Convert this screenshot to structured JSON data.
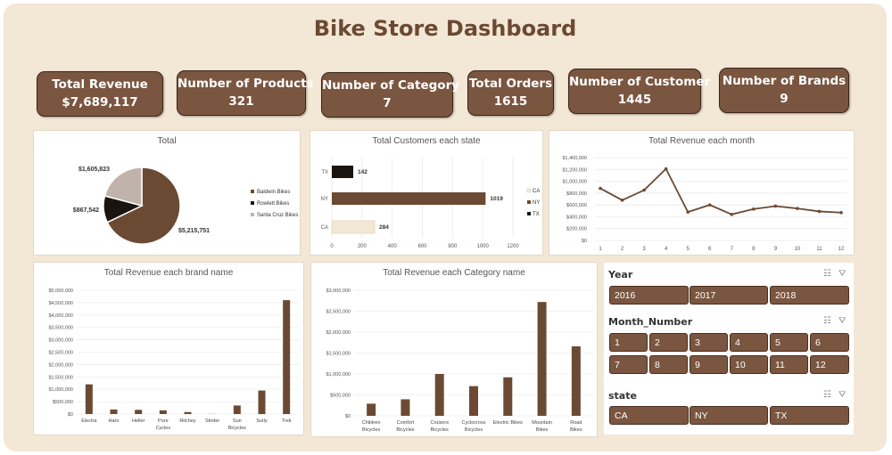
{
  "title": "Bike Store Dashboard",
  "kpis": [
    {
      "label": "Total Revenue",
      "value": "$7,689,117"
    },
    {
      "label": "Number of Products",
      "value": "321"
    },
    {
      "label": "Number of Category",
      "value": "7"
    },
    {
      "label": "Total Orders",
      "value": "1615"
    },
    {
      "label": "Number of Customer",
      "value": "1445"
    },
    {
      "label": "Number of Brands",
      "value": "9"
    }
  ],
  "colors": {
    "dark": "#6b4a33",
    "black": "#1a1410",
    "light": "#bfb3ab",
    "cream": "#f3e7d6",
    "bar": "#6b4a33"
  },
  "chart_data": [
    {
      "type": "pie",
      "title": "Total",
      "categories": [
        "Baldwin Bikes",
        "Rowlett Bikes",
        "Santa Cruz Bikes"
      ],
      "values": [
        5215751,
        867542,
        1605823
      ],
      "data_labels": [
        "$5,215,751",
        "$867,542",
        "$1,605,823"
      ]
    },
    {
      "type": "bar",
      "orientation": "horizontal",
      "title": "Total Customers each state",
      "categories": [
        "TX",
        "NY",
        "CA"
      ],
      "values": [
        142,
        1019,
        284
      ],
      "legend": [
        "CA",
        "NY",
        "TX"
      ],
      "xticks": [
        "0",
        "200",
        "400",
        "600",
        "800",
        "1000",
        "1200"
      ],
      "xlim": [
        0,
        1200
      ]
    },
    {
      "type": "line",
      "title": "Total Revenue each month",
      "x": [
        1,
        2,
        3,
        4,
        5,
        6,
        7,
        8,
        9,
        10,
        11,
        12
      ],
      "values": [
        880000,
        680000,
        850000,
        1210000,
        480000,
        600000,
        440000,
        530000,
        580000,
        540000,
        490000,
        470000
      ],
      "yticks": [
        "$0",
        "$200,000",
        "$400,000",
        "$600,000",
        "$800,000",
        "$1,000,000",
        "$1,200,000",
        "$1,400,000"
      ],
      "ylim": [
        0,
        1400000
      ]
    },
    {
      "type": "bar",
      "title": "Total Revenue each brand name",
      "categories": [
        "Electra",
        "Haro",
        "Heller",
        "Pure Cycles",
        "Ritchey",
        "Strider",
        "Sun Bicycles",
        "Surly",
        "Trek"
      ],
      "values": [
        1200000,
        185000,
        170000,
        150000,
        80000,
        5000,
        345000,
        950000,
        4600000
      ],
      "yticks": [
        "$0",
        "$500,000",
        "$1,000,000",
        "$1,500,000",
        "$2,000,000",
        "$2,500,000",
        "$3,000,000",
        "$3,500,000",
        "$4,000,000",
        "$4,500,000",
        "$5,000,000"
      ],
      "ylim": [
        0,
        5000000
      ]
    },
    {
      "type": "bar",
      "title": "Total Revenue each Category name",
      "categories": [
        "Children Bicycles",
        "Comfort Bicycles",
        "Cruisers Bicycles",
        "Cyclocross Bicycles",
        "Electric Bikes",
        "Mountain Bikes",
        "Road Bikes"
      ],
      "values": [
        290000,
        395000,
        1000000,
        710000,
        920000,
        2720000,
        1660000
      ],
      "yticks": [
        "$0",
        "$500,000",
        "$1,000,000",
        "$1,500,000",
        "$2,000,000",
        "$2,500,000",
        "$3,000,000"
      ],
      "ylim": [
        0,
        3000000
      ]
    }
  ],
  "slicers": {
    "year": {
      "title": "Year",
      "items": [
        "2016",
        "2017",
        "2018"
      ]
    },
    "month": {
      "title": "Month_Number",
      "items": [
        "1",
        "2",
        "3",
        "4",
        "5",
        "6",
        "7",
        "8",
        "9",
        "10",
        "11",
        "12"
      ]
    },
    "state": {
      "title": "state",
      "items": [
        "CA",
        "NY",
        "TX"
      ]
    },
    "icons": [
      "multi-select-icon",
      "clear-filter-icon"
    ]
  }
}
